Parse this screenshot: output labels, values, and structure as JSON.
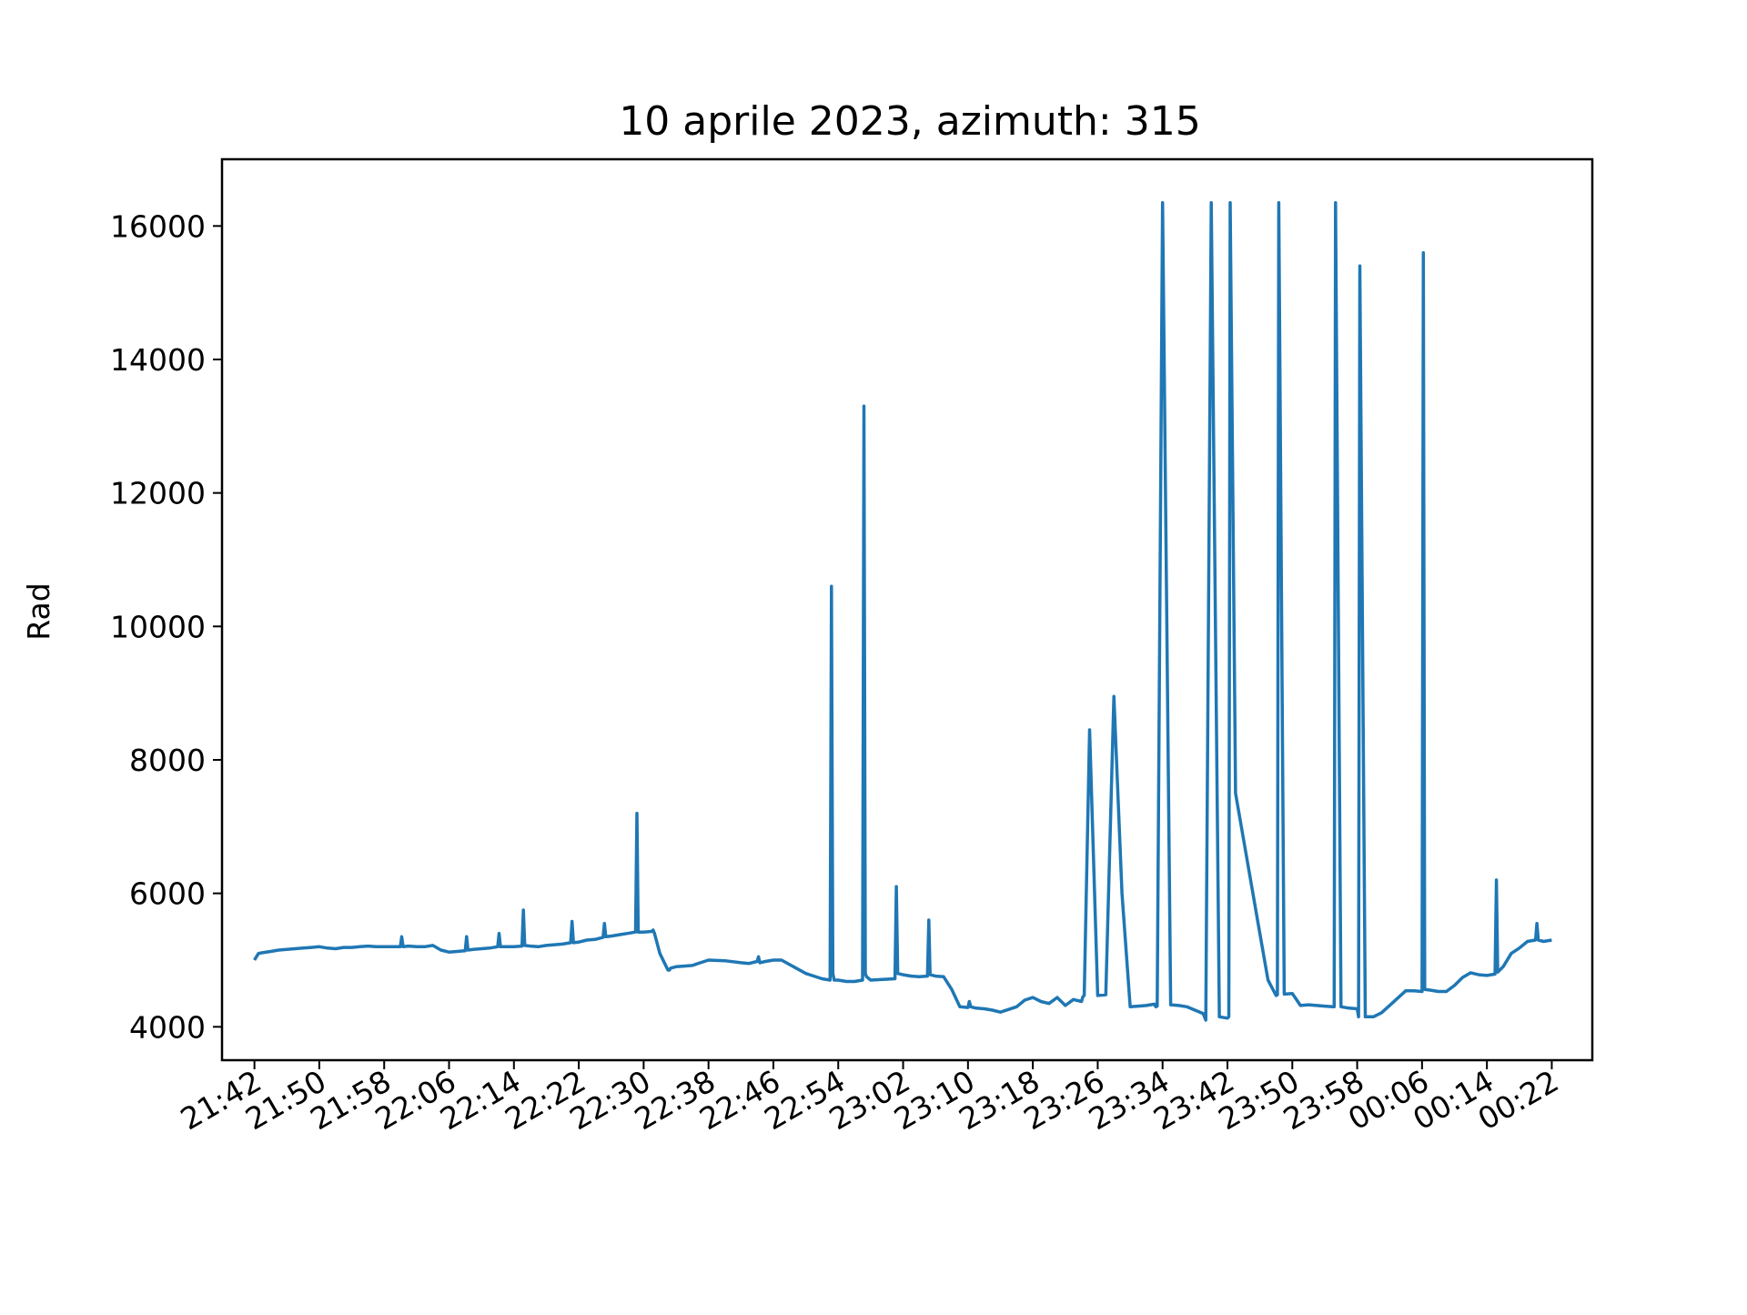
{
  "chart_data": {
    "type": "line",
    "title": "10 aprile 2023, azimuth: 315",
    "xlabel": "",
    "ylabel": "Rad",
    "xlim": [
      "21:38",
      "00:27"
    ],
    "ylim": [
      3500,
      17000
    ],
    "grid": false,
    "legend": "none",
    "line_color": "#1f77b4",
    "x_ticks": [
      "21:42",
      "21:50",
      "21:58",
      "22:06",
      "22:14",
      "22:22",
      "22:30",
      "22:38",
      "22:46",
      "22:54",
      "23:02",
      "23:10",
      "23:18",
      "23:26",
      "23:34",
      "23:42",
      "23:50",
      "23:58",
      "00:06",
      "00:14",
      "00:22"
    ],
    "y_ticks": [
      4000,
      6000,
      8000,
      10000,
      12000,
      14000,
      16000
    ],
    "series": [
      {
        "name": "",
        "x": [
          "21:42",
          "21:42:30",
          "21:43",
          "21:44",
          "21:45",
          "21:46",
          "21:47",
          "21:48",
          "21:49",
          "21:50",
          "21:51",
          "21:52",
          "21:53",
          "21:54",
          "21:55",
          "21:56",
          "21:57",
          "21:58",
          "21:59",
          "22:00",
          "22:00:10",
          "22:00:20",
          "22:01",
          "22:02",
          "22:03",
          "22:04",
          "22:05",
          "22:06",
          "22:07",
          "22:08",
          "22:08:10",
          "22:08:20",
          "22:09",
          "22:10",
          "22:11",
          "22:12",
          "22:12:10",
          "22:12:20",
          "22:13",
          "22:14",
          "22:15",
          "22:15:10",
          "22:15:20",
          "22:16",
          "22:17",
          "22:18",
          "22:19",
          "22:20",
          "22:21",
          "22:21:10",
          "22:21:20",
          "22:22",
          "22:23",
          "22:24",
          "22:25",
          "22:25:10",
          "22:25:20",
          "22:26",
          "22:27",
          "22:28",
          "22:29",
          "22:29:10",
          "22:29:20",
          "22:30",
          "22:31",
          "22:31:10",
          "22:31:20",
          "22:32",
          "22:33",
          "22:33:10",
          "22:33:20",
          "22:34",
          "22:35",
          "22:36",
          "22:37",
          "22:38",
          "22:40",
          "22:42",
          "22:43",
          "22:44",
          "22:44:10",
          "22:44:20",
          "22:45",
          "22:46",
          "22:47",
          "22:50",
          "22:52",
          "22:53",
          "22:53:10",
          "22:53:20",
          "22:53:30",
          "22:54",
          "22:55",
          "22:56",
          "22:57",
          "22:57:10",
          "22:57:20",
          "22:57:30",
          "22:58",
          "23:01",
          "23:01:10",
          "23:01:20",
          "23:02",
          "23:03",
          "23:04",
          "23:05",
          "23:05:10",
          "23:05:20",
          "23:06",
          "23:07",
          "23:08",
          "23:09",
          "23:10",
          "23:10:10",
          "23:10:20",
          "23:11",
          "23:12",
          "23:13",
          "23:14",
          "23:16",
          "23:17",
          "23:18",
          "23:19",
          "23:20",
          "23:21",
          "23:22",
          "23:23",
          "23:24",
          "23:24:10",
          "23:24:20",
          "23:25",
          "23:26",
          "23:27",
          "23:28",
          "23:29",
          "23:30",
          "23:31",
          "23:32",
          "23:33",
          "23:33:10",
          "23:33:20",
          "23:34",
          "23:35",
          "23:36",
          "23:37",
          "23:38",
          "23:39",
          "23:39:10",
          "23:39:20",
          "23:40",
          "23:41",
          "23:42",
          "23:42:10",
          "23:42:20",
          "23:43",
          "23:44",
          "23:45",
          "23:46",
          "23:47",
          "23:48",
          "23:48:10",
          "23:48:20",
          "23:49",
          "23:50",
          "23:51",
          "23:52",
          "23:53",
          "23:54",
          "23:55",
          "23:55:10",
          "23:55:20",
          "23:56",
          "23:57",
          "23:58",
          "23:58:10",
          "23:58:20",
          "23:59",
          "24:00",
          "24:01",
          "24:02",
          "24:03",
          "24:04",
          "24:05",
          "24:06",
          "24:06:10",
          "24:06:20",
          "24:07",
          "24:08",
          "24:09",
          "24:10",
          "24:11",
          "24:12",
          "24:13",
          "24:14",
          "24:15",
          "24:15:10",
          "24:15:20",
          "24:16",
          "24:17",
          "24:18",
          "24:19",
          "24:20",
          "24:20:10",
          "24:20:20",
          "24:21",
          "24:22"
        ],
        "y": [
          5000,
          5100,
          5110,
          5130,
          5150,
          5160,
          5170,
          5180,
          5190,
          5200,
          5180,
          5170,
          5190,
          5190,
          5200,
          5210,
          5200,
          5200,
          5200,
          5200,
          5350,
          5200,
          5210,
          5200,
          5200,
          5220,
          5150,
          5120,
          5130,
          5140,
          5350,
          5150,
          5160,
          5170,
          5180,
          5200,
          5400,
          5200,
          5200,
          5200,
          5210,
          5750,
          5220,
          5210,
          5200,
          5220,
          5230,
          5240,
          5260,
          5580,
          5260,
          5270,
          5300,
          5310,
          5340,
          5550,
          5350,
          5360,
          5380,
          5400,
          5420,
          7200,
          5420,
          5420,
          5430,
          5450,
          5400,
          5100,
          4850,
          4850,
          4880,
          4900,
          4910,
          4920,
          4960,
          5000,
          4990,
          4960,
          4950,
          4980,
          5050,
          4960,
          4980,
          5000,
          5000,
          4800,
          4720,
          4700,
          10600,
          4800,
          4700,
          4700,
          4680,
          4680,
          4700,
          13300,
          4800,
          4750,
          4700,
          4720,
          6100,
          4800,
          4780,
          4760,
          4750,
          4760,
          5600,
          4780,
          4760,
          4750,
          4560,
          4300,
          4290,
          4380,
          4300,
          4280,
          4270,
          4250,
          4220,
          4300,
          4400,
          4440,
          4380,
          4350,
          4440,
          4320,
          4410,
          4380,
          4450,
          4470,
          8450,
          4470,
          4480,
          8950,
          6000,
          4300,
          4310,
          4320,
          4340,
          4300,
          4310,
          16350,
          4330,
          4320,
          4300,
          4250,
          4200,
          4150,
          4100,
          16350,
          4150,
          4130,
          4150,
          16350,
          7500,
          6800,
          6100,
          5400,
          4700,
          4470,
          4480,
          16350,
          4490,
          4500,
          4320,
          4330,
          4320,
          4310,
          4300,
          4300,
          16350,
          4300,
          4280,
          4270,
          4150,
          15400,
          4150,
          4150,
          4210,
          4320,
          4430,
          4540,
          4540,
          4530,
          15600,
          4560,
          4550,
          4530,
          4530,
          4620,
          4740,
          4810,
          4780,
          4770,
          4790,
          6200,
          4820,
          4900,
          5100,
          5180,
          5280,
          5300,
          5550,
          5300,
          5280,
          5300
        ]
      }
    ]
  }
}
